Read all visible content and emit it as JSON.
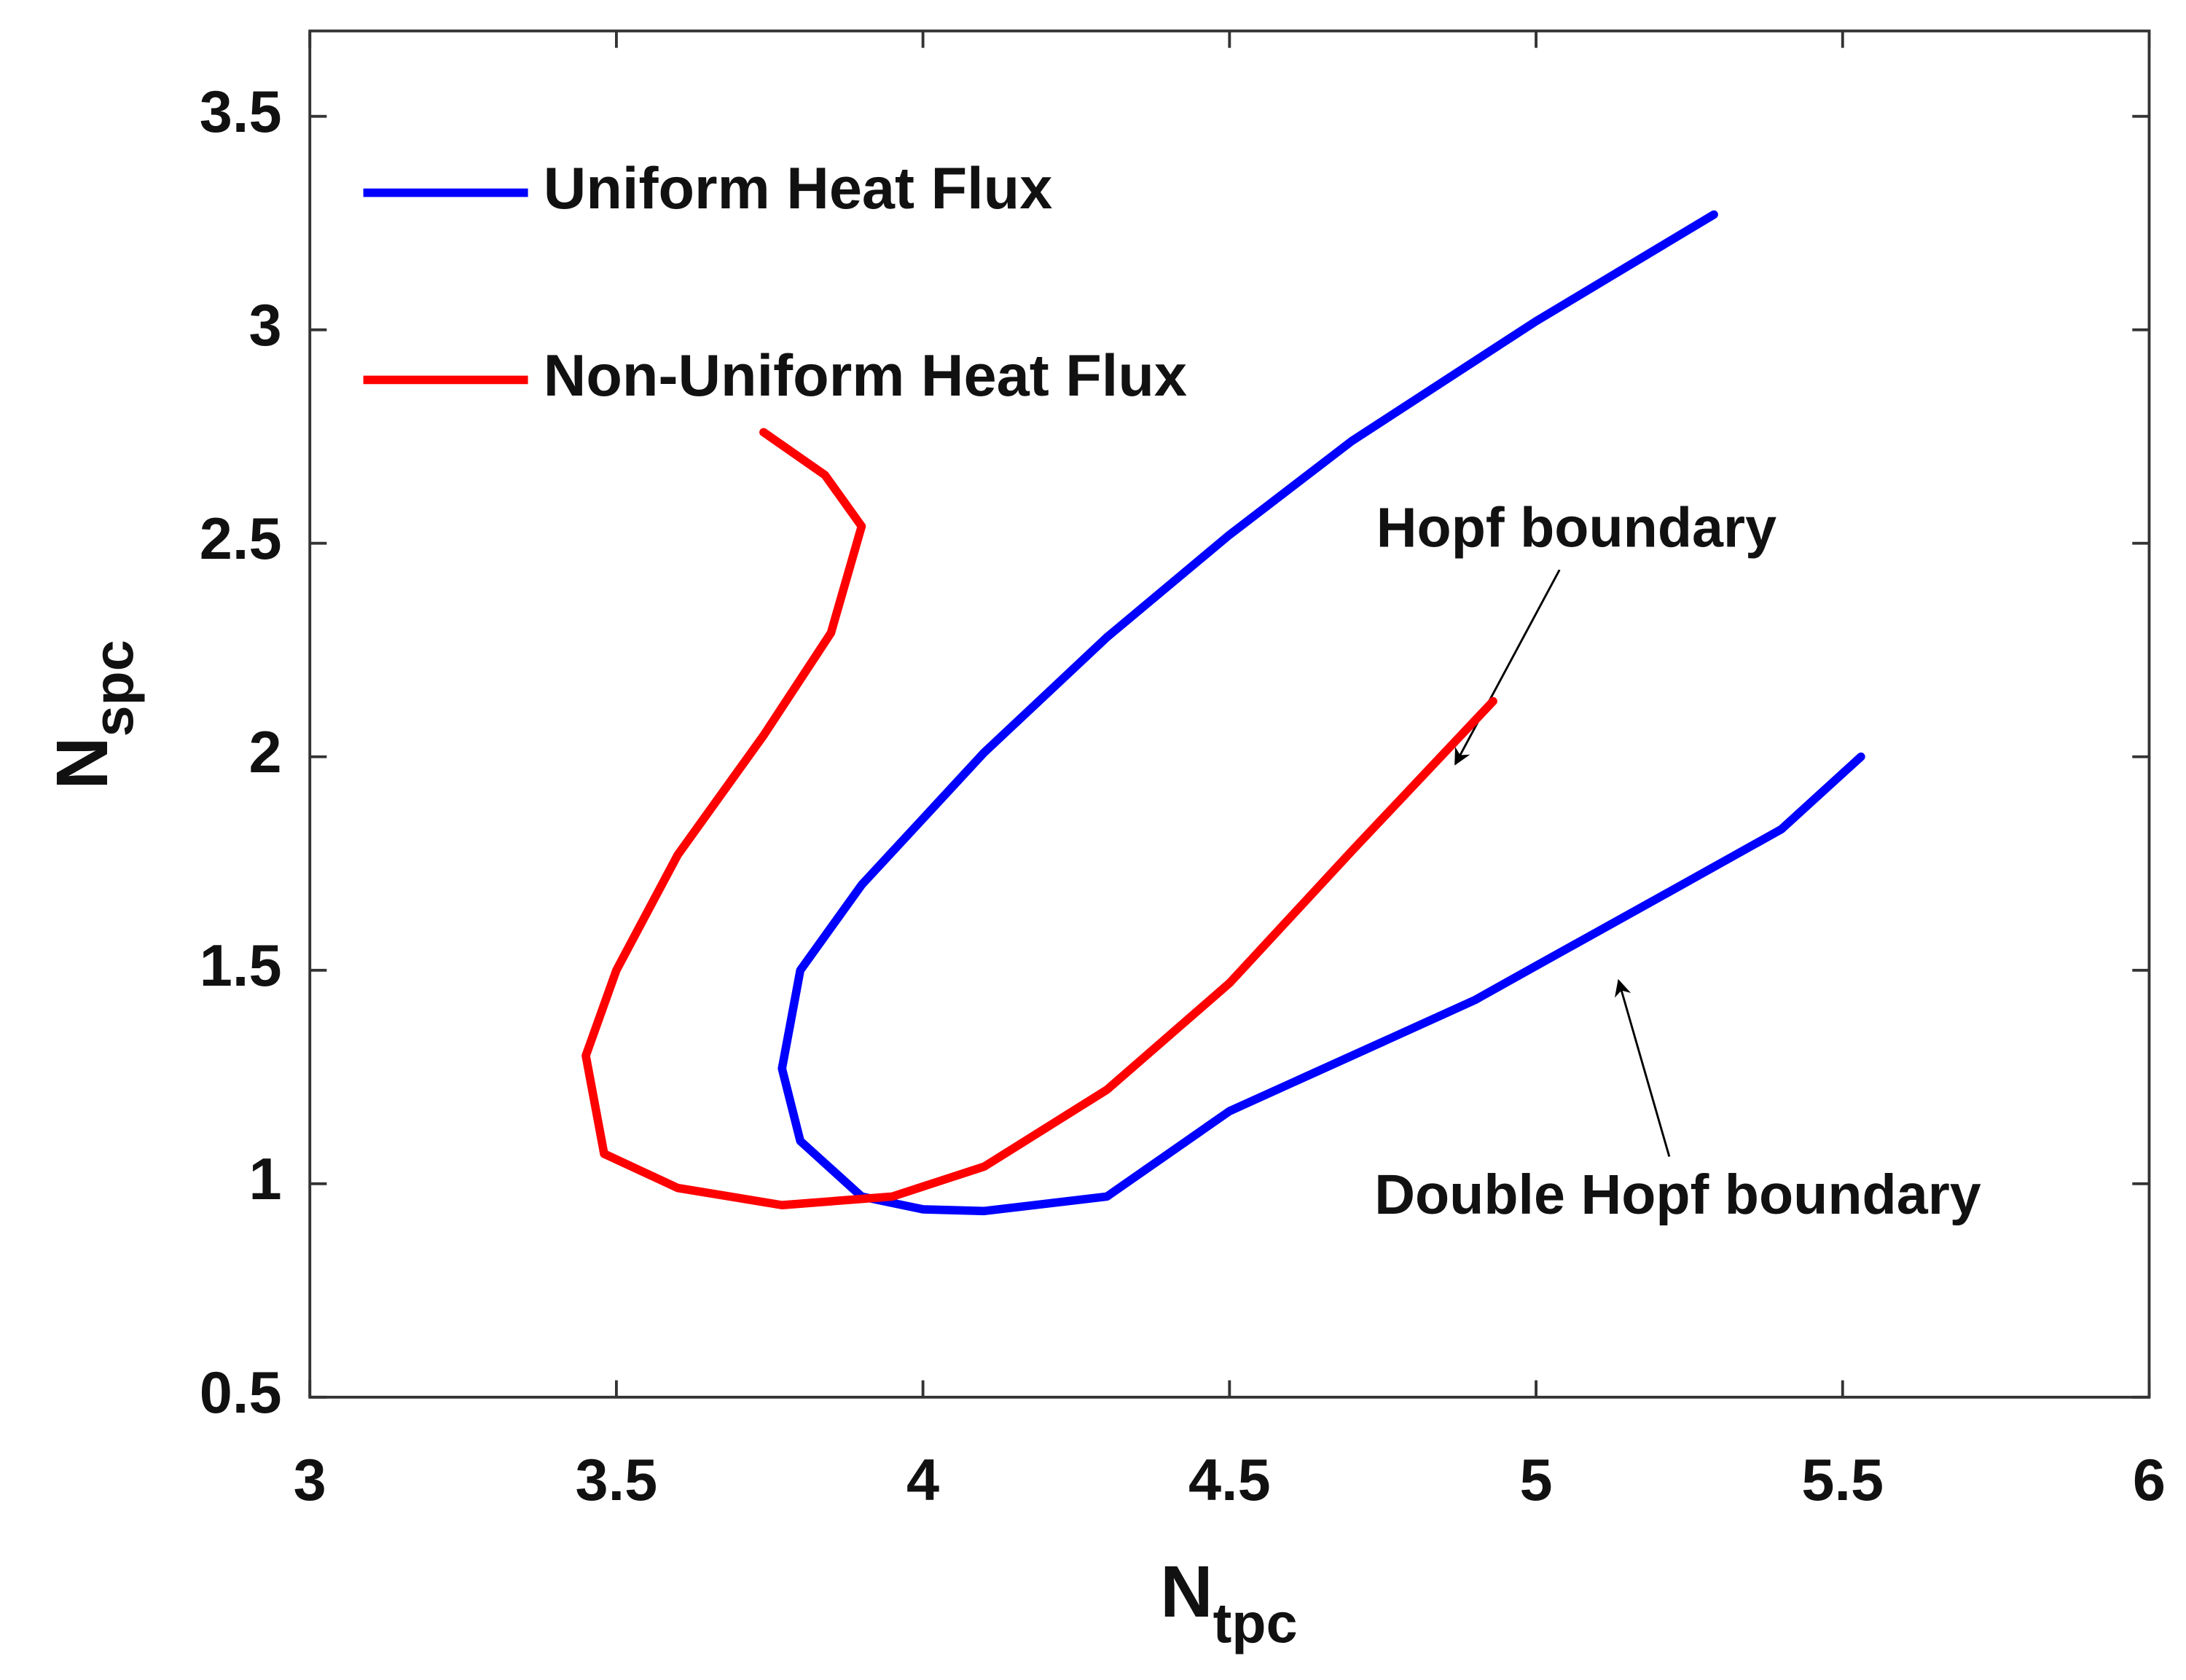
{
  "chart_data": {
    "type": "line",
    "xlabel": "N",
    "xlabel_sub": "tpc",
    "ylabel": "N",
    "ylabel_sub": "spc",
    "xlim": [
      3,
      6
    ],
    "xticks": [
      3,
      3.5,
      4,
      4.5,
      5,
      5.5,
      6
    ],
    "ylim": [
      0.5,
      3.7
    ],
    "yticks": [
      0.5,
      1,
      1.5,
      2,
      2.5,
      3,
      3.5
    ],
    "legend": "top-left",
    "series": [
      {
        "name": "Uniform Heat Flux",
        "color": "#0000ff",
        "x": [
          5.29,
          5.0,
          4.7,
          4.5,
          4.3,
          4.1,
          3.9,
          3.8,
          3.77,
          3.8,
          3.9,
          4.0,
          4.1,
          4.3,
          4.5,
          4.7,
          4.9,
          5.0,
          5.2,
          5.4,
          5.53
        ],
        "values": [
          3.27,
          3.02,
          2.74,
          2.52,
          2.28,
          2.01,
          1.7,
          1.5,
          1.27,
          1.1,
          0.97,
          0.94,
          0.936,
          0.97,
          1.17,
          1.3,
          1.43,
          1.51,
          1.67,
          1.83,
          2.0
        ]
      },
      {
        "name": "Non-Uniform Heat Flux",
        "color": "#ff0000",
        "x": [
          3.74,
          3.84,
          3.9,
          3.85,
          3.74,
          3.6,
          3.5,
          3.45,
          3.48,
          3.6,
          3.77,
          3.95,
          4.1,
          4.3,
          4.5,
          4.7,
          4.93
        ],
        "values": [
          2.76,
          2.66,
          2.54,
          2.29,
          2.05,
          1.77,
          1.5,
          1.3,
          1.07,
          0.99,
          0.95,
          0.97,
          1.04,
          1.22,
          1.47,
          1.78,
          2.13
        ]
      }
    ],
    "annotations": [
      "Hopf boundary",
      "Double Hopf boundary"
    ]
  }
}
